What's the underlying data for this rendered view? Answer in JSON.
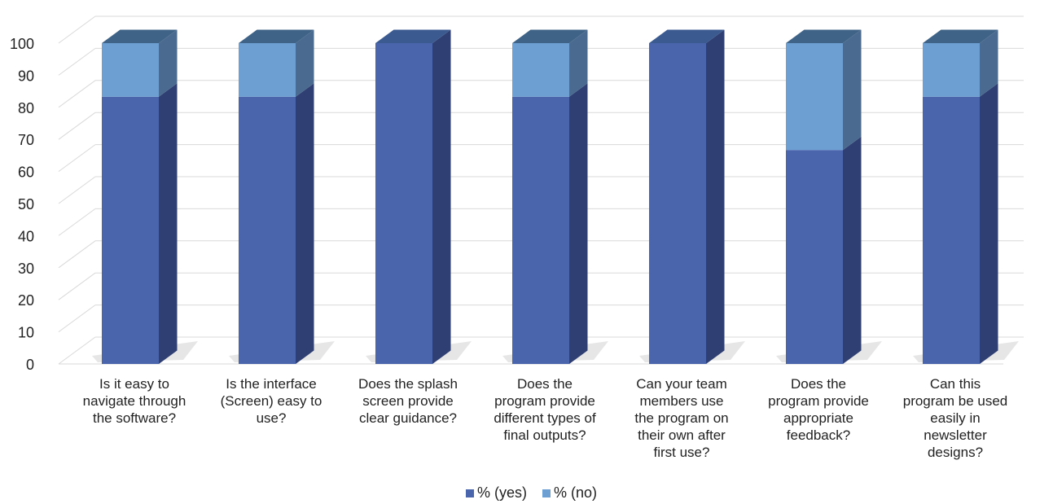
{
  "chart_data": {
    "type": "bar",
    "stacked": true,
    "three_d": true,
    "categories": [
      [
        "Is it easy to",
        "navigate through",
        "the software?"
      ],
      [
        "Is the interface",
        "(Screen) easy to",
        "use?"
      ],
      [
        "Does the splash",
        "screen provide",
        "clear guidance?"
      ],
      [
        "Does the",
        "program provide",
        "different types of",
        "final outputs?"
      ],
      [
        "Can your team",
        "members use",
        "the program on",
        "their own after",
        "first use?"
      ],
      [
        "Does the",
        "program provide",
        "appropriate",
        "feedback?"
      ],
      [
        "Can this",
        "program be used",
        "easily in",
        "newsletter",
        "designs?"
      ]
    ],
    "series": [
      {
        "name": "% (yes)",
        "values": [
          83.3,
          83.3,
          100,
          83.3,
          100,
          66.7,
          83.3
        ],
        "color": "#4b65ad",
        "side_color": "#2f3f73",
        "top_color": "#3b5a90"
      },
      {
        "name": "% (no)",
        "values": [
          16.7,
          16.7,
          0,
          16.7,
          0,
          33.3,
          16.7
        ],
        "color": "#6e9fd2",
        "side_color": "#4a6b8f",
        "top_color": "#3f6386"
      }
    ],
    "ylim": [
      0,
      100
    ],
    "yticks": [
      "0",
      "10",
      "20",
      "30",
      "40",
      "50",
      "60",
      "70",
      "80",
      "90",
      "100"
    ],
    "grid": true,
    "legend": "bottom",
    "title": "",
    "xlabel": "",
    "ylabel": ""
  }
}
